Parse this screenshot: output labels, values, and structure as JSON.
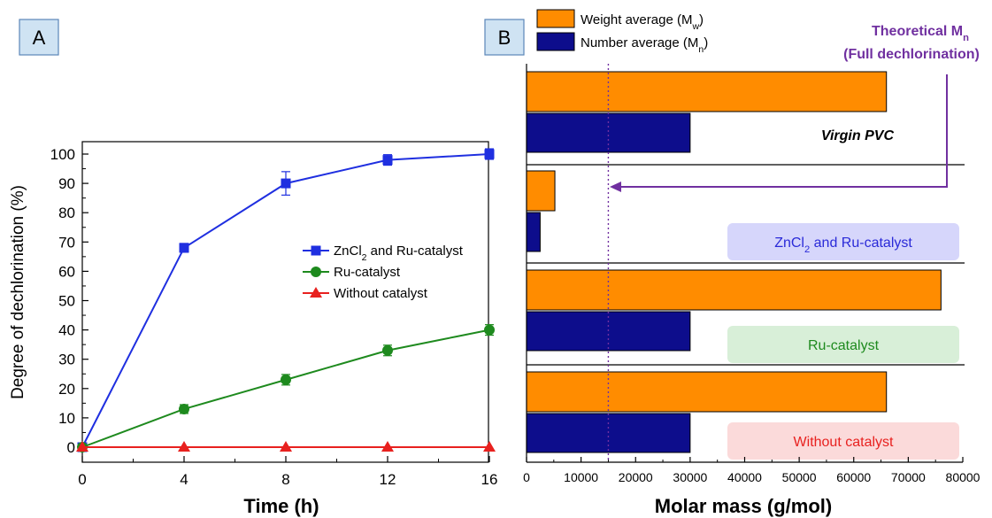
{
  "chart_data": [
    {
      "type": "line",
      "panel_label": "A",
      "xlabel": "Time (h)",
      "ylabel": "Degree of dechlorination (%)",
      "xlim": [
        0,
        16
      ],
      "ylim": [
        0,
        100
      ],
      "x_ticks": [
        0,
        4,
        8,
        12,
        16
      ],
      "y_ticks": [
        0,
        10,
        20,
        30,
        40,
        50,
        60,
        70,
        80,
        90,
        100
      ],
      "grid": false,
      "legend_position": "center-right",
      "series": [
        {
          "name_parts": [
            "ZnCl",
            "2",
            " and Ru-catalyst"
          ],
          "color": "#1f2fe0",
          "marker": "square",
          "x": [
            0,
            4,
            8,
            12,
            16
          ],
          "y": [
            0,
            68,
            90,
            98,
            100
          ],
          "err": [
            0,
            1.5,
            4,
            1.8,
            1.8
          ]
        },
        {
          "name_parts": [
            "Ru-catalyst",
            "",
            ""
          ],
          "color": "#1e8a1e",
          "marker": "circle",
          "x": [
            0,
            4,
            8,
            12,
            16
          ],
          "y": [
            0,
            13,
            23,
            33,
            40
          ],
          "err": [
            0,
            1.5,
            1.8,
            1.8,
            1.8
          ]
        },
        {
          "name_parts": [
            "Without catalyst",
            "",
            ""
          ],
          "color": "#e8211f",
          "marker": "triangle",
          "x": [
            0,
            4,
            8,
            12,
            16
          ],
          "y": [
            0,
            0,
            0,
            0,
            0
          ],
          "err": [
            0,
            0,
            0,
            0,
            0
          ]
        }
      ]
    },
    {
      "type": "bar",
      "orientation": "horizontal",
      "panel_label": "B",
      "xlabel": "Molar mass (g/mol)",
      "xlim": [
        0,
        80000
      ],
      "x_ticks": [
        0,
        10000,
        20000,
        30000,
        40000,
        50000,
        60000,
        70000,
        80000
      ],
      "legend_position": "top",
      "legend": [
        {
          "text": "Weight average (M",
          "sub": "w",
          "tail": ")",
          "color": "#ff8c00"
        },
        {
          "text": "Number average (M",
          "sub": "n",
          "tail": ")",
          "color": "#0d0d8c"
        }
      ],
      "theoretical_mn": 15000,
      "annotation": {
        "line1": "Theoretical M",
        "line1_sub": "n",
        "line2": "(Full dechlorination)",
        "color": "#7030a0"
      },
      "groups": [
        {
          "label_parts": [
            "Virgin PVC",
            "",
            ""
          ],
          "label_style": "italic-bold",
          "label_color": "#000000",
          "label_bg": "",
          "mw": 66000,
          "mn": 30000
        },
        {
          "label_parts": [
            "ZnCl",
            "2",
            " and Ru-catalyst"
          ],
          "label_style": "box",
          "label_color": "#2a2ad8",
          "label_bg": "#d6d6fb",
          "mw": 5200,
          "mn": 2500
        },
        {
          "label_parts": [
            "Ru-catalyst",
            "",
            ""
          ],
          "label_style": "box",
          "label_color": "#1e8a1e",
          "label_bg": "#d8efd8",
          "mw": 76000,
          "mn": 30000
        },
        {
          "label_parts": [
            "Without catalyst",
            "",
            ""
          ],
          "label_style": "box",
          "label_color": "#e8211f",
          "label_bg": "#fbdada",
          "mw": 66000,
          "mn": 30000
        }
      ]
    }
  ]
}
